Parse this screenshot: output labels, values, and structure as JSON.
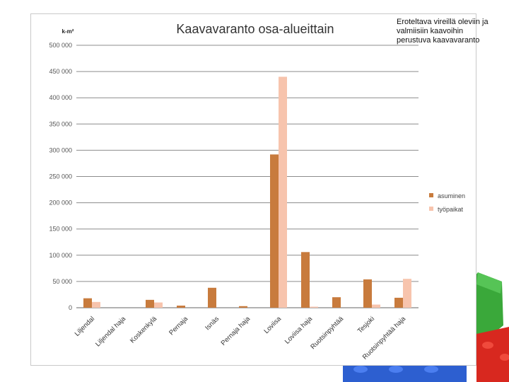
{
  "annotation": "Eroteltava vireillä oleviin ja valmiisiin kaavoihin perustuva kaavavaranto",
  "colors": {
    "asuminen": "#c87b3d",
    "tyopaikat": "#f7c4ad",
    "grid": "#8c8c8c",
    "axis_text": "#555555"
  },
  "chart_data": {
    "type": "bar",
    "title": "Kaavavaranto osa-alueittain",
    "ylabel": "k-m²",
    "xlabel": "",
    "ylim": [
      0,
      500000
    ],
    "yticks": [
      0,
      50000,
      100000,
      150000,
      200000,
      250000,
      300000,
      350000,
      400000,
      450000,
      500000
    ],
    "ytick_labels": [
      "0",
      "50 000",
      "100 000",
      "150 000",
      "200 000",
      "250 000",
      "300 000",
      "350 000",
      "400 000",
      "450 000",
      "500 000"
    ],
    "categories": [
      "Liljendal",
      "Liljendal haja",
      "Koskenkylä",
      "Pernaja",
      "Isnäs",
      "Pernaja haja",
      "Loviisa",
      "Loviisa haja",
      "Ruotsinpyhtää",
      "Tesjoki",
      "Ruotsinpyhtää haja"
    ],
    "series": [
      {
        "name": "asuminen",
        "values": [
          18000,
          0,
          15000,
          4000,
          38000,
          3000,
          292000,
          106000,
          20000,
          54000,
          19000
        ]
      },
      {
        "name": "työpaikat",
        "values": [
          11000,
          0,
          10000,
          0,
          0,
          0,
          440000,
          2000,
          0,
          6000,
          55000
        ]
      }
    ],
    "legend": "right",
    "grid": true
  }
}
